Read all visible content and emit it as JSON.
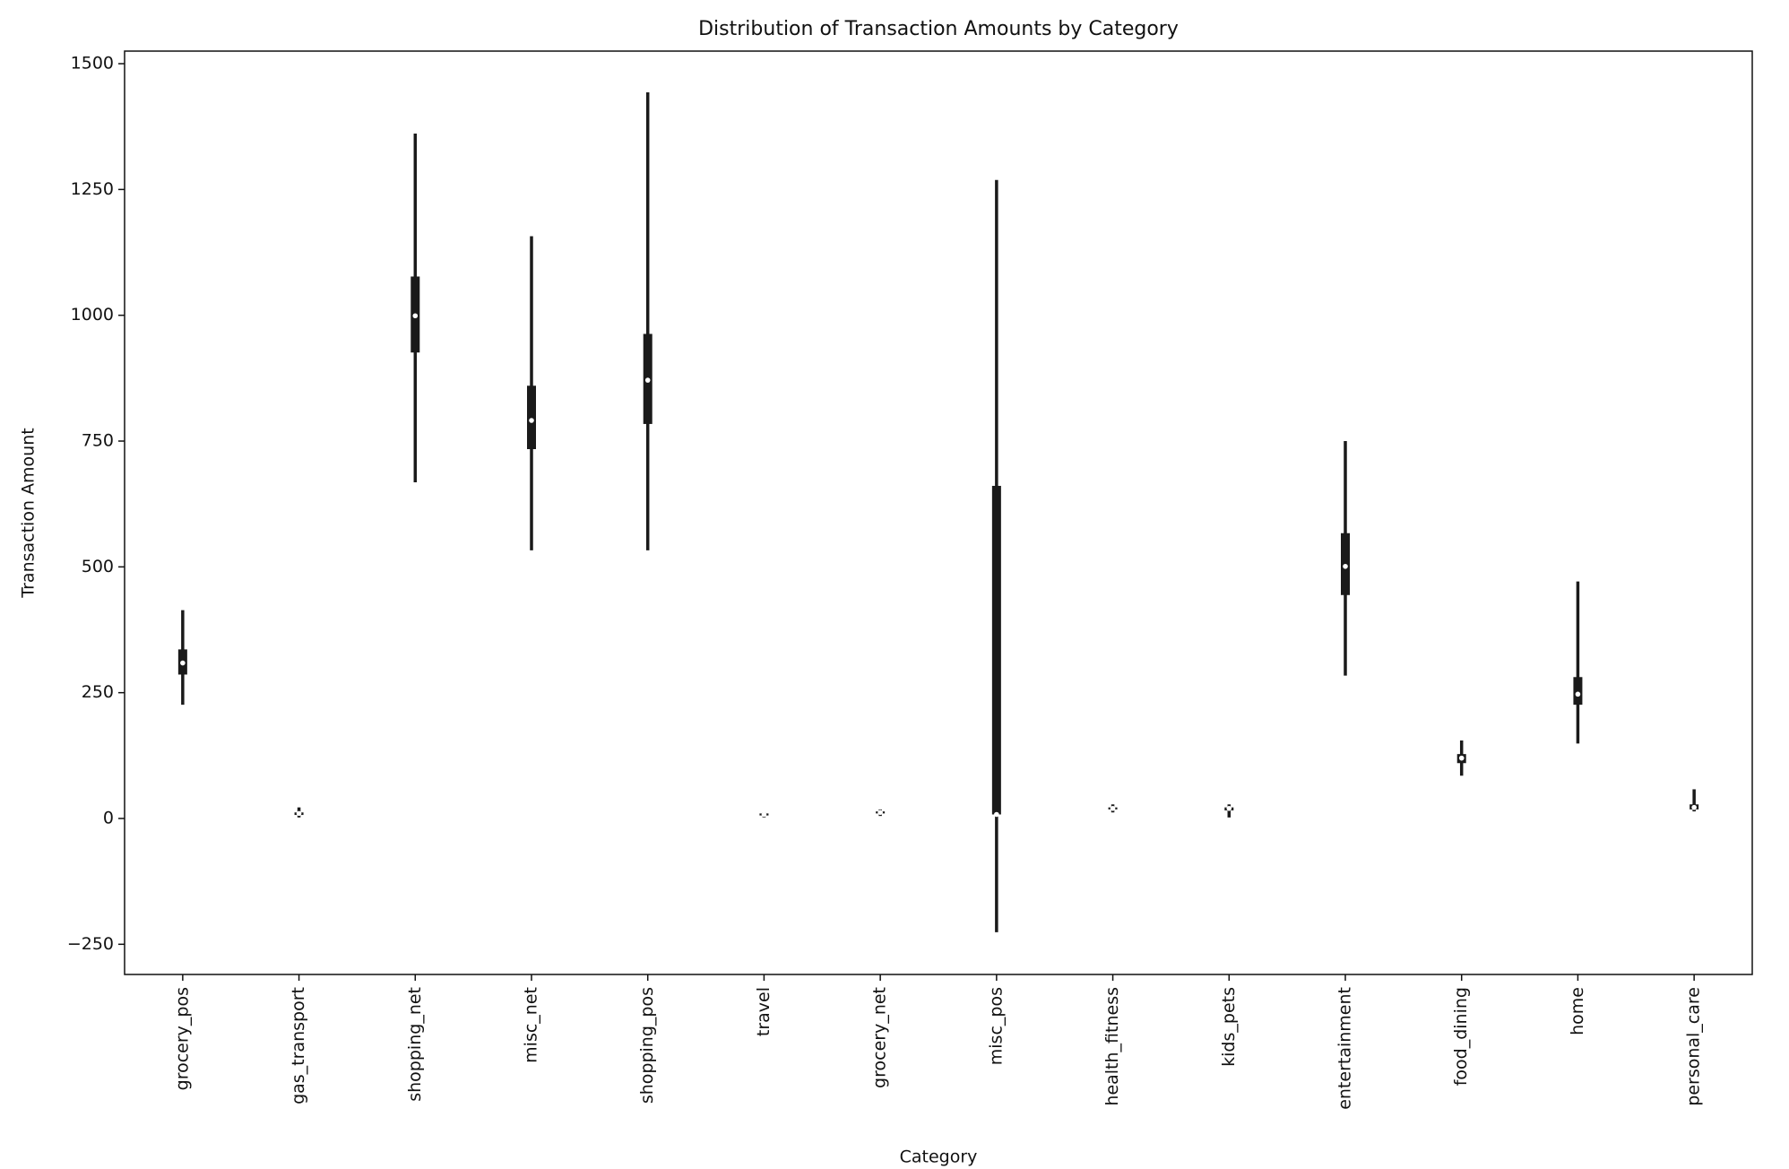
{
  "chart_data": {
    "type": "violin",
    "title": "Distribution of Transaction Amounts by Category",
    "xlabel": "Category",
    "ylabel": "Transaction Amount",
    "categories": [
      "grocery_pos",
      "gas_transport",
      "shopping_net",
      "misc_net",
      "shopping_pos",
      "travel",
      "grocery_net",
      "misc_pos",
      "health_fitness",
      "kids_pets",
      "entertainment",
      "food_dining",
      "home",
      "personal_care"
    ],
    "min": [
      226,
      2,
      668,
      533,
      533,
      2,
      5,
      -226,
      12,
      2,
      284,
      85,
      149,
      14
    ],
    "q1": [
      286,
      7,
      926,
      734,
      784,
      6,
      10,
      8,
      18,
      16,
      444,
      110,
      226,
      18
    ],
    "median": [
      309,
      10,
      999,
      791,
      871,
      8,
      12,
      8,
      20,
      20,
      501,
      120,
      247,
      22
    ],
    "q3": [
      336,
      12,
      1077,
      860,
      963,
      10,
      14,
      661,
      22,
      22,
      567,
      128,
      281,
      28
    ],
    "max": [
      414,
      22,
      1361,
      1157,
      1443,
      12,
      18,
      1269,
      28,
      28,
      750,
      155,
      471,
      58
    ],
    "color": "#1a1a1a",
    "ylim": [
      -310,
      1525
    ],
    "yticks": [
      {
        "value": -250,
        "label": "−250"
      },
      0,
      250,
      500,
      750,
      1000,
      1250,
      1500
    ]
  }
}
